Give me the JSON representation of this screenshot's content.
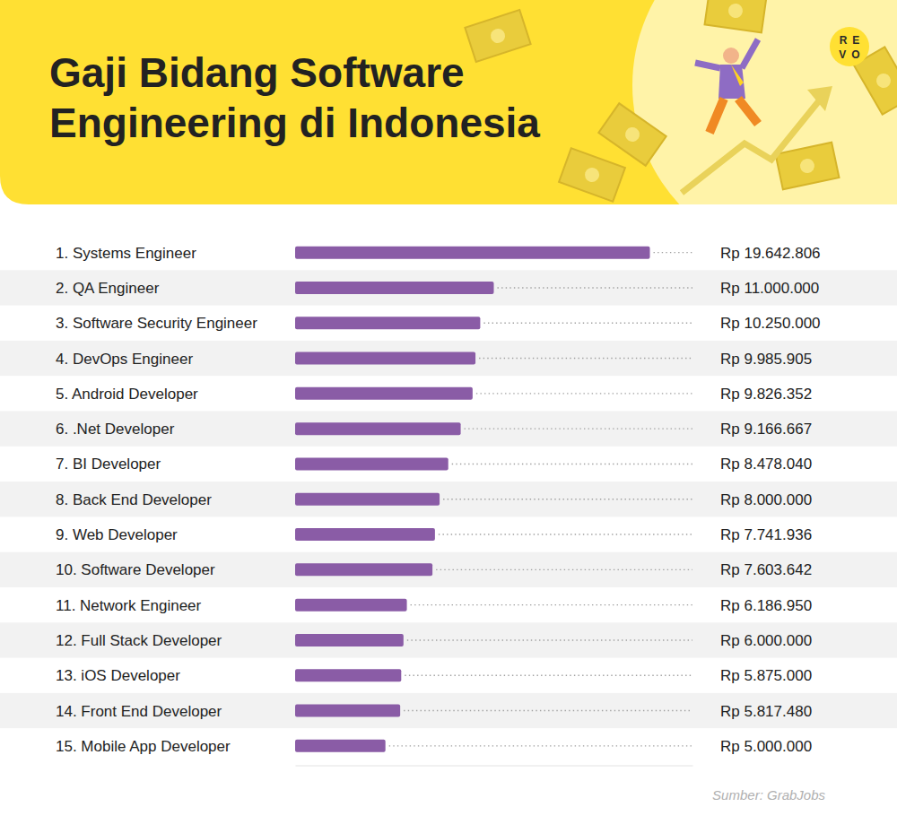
{
  "chart_data": {
    "type": "bar",
    "orientation": "horizontal",
    "title": "Gaji Bidang Software Engineering di Indonesia",
    "source": "Sumber: GrabJobs",
    "logo": "REVO",
    "categories": [
      "1. Systems Engineer",
      "2. QA Engineer",
      "3. Software Security Engineer",
      "4. DevOps Engineer",
      "5. Android Developer",
      "6. .Net Developer",
      "7. BI Developer",
      "8. Back End Developer",
      "9. Web Developer",
      "10. Software Developer",
      "11. Network Engineer",
      "12. Full Stack Developer",
      "13. iOS Developer",
      "14. Front End Developer",
      "15. Mobile App Developer"
    ],
    "values": [
      19642806,
      11000000,
      10250000,
      9985905,
      9826352,
      9166667,
      8478040,
      8000000,
      7741936,
      7603642,
      6186950,
      6000000,
      5875000,
      5817480,
      5000000
    ],
    "value_labels": [
      "Rp 19.642.806",
      "Rp 11.000.000",
      "Rp 10.250.000",
      "Rp 9.985.905",
      "Rp 9.826.352",
      "Rp 9.166.667",
      "Rp 8.478.040",
      "Rp 8.000.000",
      "Rp 7.741.936",
      "Rp 7.603.642",
      "Rp 6.186.950",
      "Rp 6.000.000",
      "Rp 5.875.000",
      "Rp 5.817.480",
      "Rp 5.000.000"
    ],
    "data_labels": true,
    "tick_labels": false,
    "grid": false,
    "color": "#8a5ca6",
    "xlim": [
      0,
      22000000
    ]
  }
}
